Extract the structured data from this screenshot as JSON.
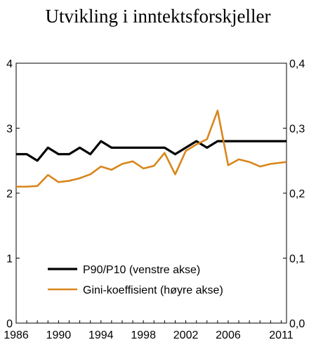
{
  "title": "Utvikling i inntektsforskjeller",
  "chart_data": {
    "type": "line",
    "title": "Utvikling i inntektsforskjeller",
    "x": [
      1986,
      1987,
      1988,
      1989,
      1990,
      1991,
      1992,
      1993,
      1994,
      1995,
      1996,
      1997,
      1998,
      1999,
      2000,
      2001,
      2002,
      2003,
      2004,
      2005,
      2006,
      2007,
      2008,
      2009,
      2010,
      2011
    ],
    "x_tick_labels": [
      "1986",
      "1990",
      "1994",
      "1998",
      "2002",
      "2006",
      "2011"
    ],
    "x_tick_values": [
      1986,
      1990,
      1994,
      1998,
      2002,
      2006,
      2011
    ],
    "xlim": [
      1986,
      2011.5
    ],
    "y_left": {
      "ylim": [
        0,
        4
      ],
      "ticks": [
        "0",
        "1",
        "2",
        "3",
        "4"
      ]
    },
    "y_right": {
      "ylim": [
        0,
        0.4
      ],
      "ticks": [
        "0,0",
        "0,1",
        "0,2",
        "0,3",
        "0,4"
      ]
    },
    "grid": false,
    "legend_placement": "bottom-left",
    "series": [
      {
        "name": "P90/P10 (venstre akse)",
        "axis": "left",
        "color": "#000000",
        "x": [
          1986,
          1987,
          1988,
          1989,
          1990,
          1991,
          1992,
          1993,
          1994,
          1995,
          1996,
          1997,
          1998,
          1999,
          2000,
          2001,
          2002,
          2003,
          2004,
          2005,
          2006,
          2007,
          2008,
          2009,
          2010,
          2011,
          2011.5
        ],
        "values": [
          2.6,
          2.6,
          2.5,
          2.7,
          2.6,
          2.6,
          2.7,
          2.6,
          2.8,
          2.7,
          2.7,
          2.7,
          2.7,
          2.7,
          2.7,
          2.6,
          2.7,
          2.8,
          2.7,
          2.8,
          2.8,
          2.8,
          2.8,
          2.8,
          2.8,
          2.8,
          2.8
        ]
      },
      {
        "name": "Gini-koeffisient (høyre akse)",
        "axis": "right",
        "color": "#D9861C",
        "x": [
          1986,
          1987,
          1988,
          1989,
          1990,
          1991,
          1992,
          1993,
          1994,
          1995,
          1996,
          1997,
          1998,
          1999,
          2000,
          2001,
          2002,
          2003,
          2004,
          2005,
          2006,
          2007,
          2008,
          2009,
          2010,
          2011,
          2011.5
        ],
        "values": [
          0.21,
          0.21,
          0.211,
          0.228,
          0.217,
          0.219,
          0.223,
          0.229,
          0.241,
          0.236,
          0.245,
          0.249,
          0.238,
          0.242,
          0.262,
          0.229,
          0.265,
          0.275,
          0.283,
          0.327,
          0.243,
          0.252,
          0.248,
          0.241,
          0.245,
          0.247,
          0.248
        ]
      }
    ]
  }
}
